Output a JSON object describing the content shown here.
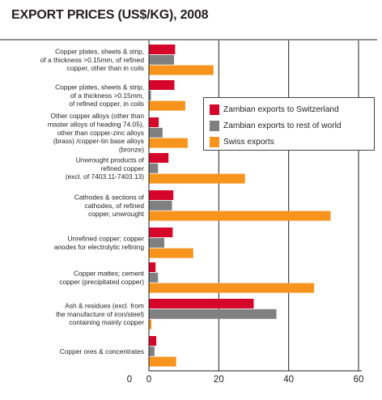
{
  "title": "EXPORT PRICES (US$/KG), 2008",
  "colors": {
    "zambia_switzerland": "#d5062a",
    "zambia_rest": "#808080",
    "swiss": "#f7941d"
  },
  "chart_data": {
    "type": "bar",
    "orientation": "horizontal",
    "categories": [
      [
        "Copper plates, sheets & strip,",
        "of a thickness >0.15mm, of refined",
        "copper, other than in coils"
      ],
      [
        "Copper plates, sheets & strip,",
        "of a thickness >0.15mm,",
        "of refined copper, in coils"
      ],
      [
        "Other copper alloys (other than",
        "master alloys of heading 74.05),",
        "other than copper-zinc alloys",
        "(brass) /copper-tin base alloys",
        "(bronze)"
      ],
      [
        "Unwrought products of",
        "refined copper",
        "(excl. of 7403.11-7403.13)"
      ],
      [
        "Cathodes & sections of",
        "cathodes, of refined",
        "copper, unwrought"
      ],
      [
        "Unrefined copper; copper",
        "anodes for electrolytic refining"
      ],
      [
        "Copper mattes; cement",
        "copper (precipitated copper)"
      ],
      [
        "Ash & residues (excl. from",
        "the manufacture of iron/steel)",
        "containing mainly copper"
      ],
      [
        "Copper ores & concentrates"
      ]
    ],
    "series": [
      {
        "name": "Zambian exports to Switzerland",
        "values": [
          7.5,
          7.3,
          2.8,
          5.6,
          7.0,
          6.8,
          1.9,
          30.0,
          2.1
        ]
      },
      {
        "name": "Zambian exports to rest of world",
        "values": [
          7.2,
          0.6,
          3.9,
          2.6,
          6.6,
          4.4,
          2.6,
          36.5,
          1.6
        ]
      },
      {
        "name": "Swiss exports",
        "values": [
          18.5,
          10.4,
          11.1,
          27.5,
          52.0,
          12.7,
          47.3,
          0.7,
          7.8
        ]
      }
    ],
    "xlim": [
      0,
      60
    ],
    "xticks": [
      0,
      20,
      40,
      60
    ],
    "extra_tick_label": "0",
    "grid": true,
    "legend": "right"
  }
}
